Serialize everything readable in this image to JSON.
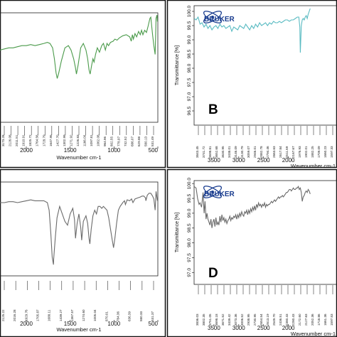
{
  "chart_data": [
    {
      "type": "line",
      "label": "",
      "color": "#4a9a4a",
      "xlabel": "Wavenumber cm-1",
      "ylabel": "",
      "xlim": [
        2300,
        500
      ],
      "ylim": [
        0,
        100
      ],
      "xticks": [
        2000,
        1500,
        1000,
        500
      ],
      "yticks": [],
      "peak_labels": [
        "3173.28",
        "2126.08",
        "2011.51",
        "1910.91",
        "1825.72",
        "1764.56",
        "1728.79",
        "1647.95",
        "1427.70",
        "1302.99",
        "1271.92",
        "1226.83",
        "1166.00",
        "1097.81",
        "1062.08",
        "964.96",
        "802.55",
        "778.97",
        "742.52",
        "686.07",
        "629.88",
        "580.13",
        "531.49"
      ],
      "x": [
        2300,
        2250,
        2200,
        2150,
        2100,
        2050,
        2000,
        1950,
        1900,
        1850,
        1800,
        1760,
        1730,
        1700,
        1680,
        1660,
        1647,
        1630,
        1600,
        1560,
        1520,
        1490,
        1460,
        1440,
        1428,
        1410,
        1380,
        1350,
        1320,
        1300,
        1285,
        1272,
        1255,
        1240,
        1227,
        1210,
        1190,
        1166,
        1140,
        1120,
        1098,
        1080,
        1062,
        1040,
        1010,
        990,
        965,
        940,
        900,
        860,
        820,
        803,
        790,
        779,
        760,
        742,
        720,
        700,
        686,
        670,
        650,
        630,
        610,
        590,
        580,
        560,
        545,
        531,
        520,
        510,
        505
      ],
      "values": [
        66,
        67,
        68,
        68,
        69,
        70,
        70,
        71,
        70,
        71,
        72,
        73,
        72,
        68,
        58,
        45,
        40,
        45,
        56,
        68,
        70,
        66,
        58,
        50,
        44,
        52,
        68,
        72,
        66,
        58,
        48,
        44,
        52,
        58,
        55,
        62,
        68,
        64,
        70,
        72,
        66,
        72,
        70,
        73,
        74,
        76,
        75,
        77,
        79,
        80,
        78,
        74,
        80,
        76,
        81,
        78,
        83,
        80,
        84,
        80,
        84,
        82,
        88,
        95,
        96,
        80,
        70,
        62,
        95,
        98,
        92
      ]
    },
    {
      "type": "line",
      "label": "B",
      "color": "#5abbc2",
      "logo": "BRUKER",
      "xlabel": "Wavenumber cm-1",
      "ylabel": "Transmittance [%]",
      "xlim": [
        3900,
        1020
      ],
      "ylim": [
        96.0,
        100.2
      ],
      "yticks": [
        "100.0",
        "99.5",
        "99.0",
        "98.5",
        "98.0",
        "97.5",
        "97.0",
        "96.5"
      ],
      "xticks": [
        3500,
        3000,
        2500,
        2000
      ],
      "peak_labels": [
        "3843.45",
        "3741.72",
        "3698.81",
        "3652.68",
        "3630.95",
        "3438.01",
        "3146.09",
        "3130.79",
        "3059.07",
        "2946.01",
        "2882.78",
        "2794.46",
        "2663.63",
        "2617.84",
        "2511.69",
        "2167.67",
        "1976.93",
        "1902.01",
        "1882.25",
        "1709.09",
        "1660.23",
        "1597.33"
      ],
      "x": [
        3900,
        3860,
        3820,
        3780,
        3740,
        3700,
        3660,
        3620,
        3580,
        3540,
        3500,
        3460,
        3420,
        3380,
        3340,
        3300,
        3260,
        3220,
        3180,
        3140,
        3100,
        3060,
        3020,
        2980,
        2940,
        2900,
        2860,
        2820,
        2780,
        2740,
        2700,
        2660,
        2620,
        2580,
        2540,
        2500,
        2460,
        2420,
        2380,
        2340,
        2300,
        2260,
        2220,
        2180,
        2140,
        2100,
        2060,
        2020,
        1980,
        1940,
        1900,
        1860,
        1820,
        1790,
        1770,
        1760,
        1740,
        1720,
        1700,
        1680,
        1660,
        1640,
        1620,
        1600,
        1580,
        1560
      ],
      "values": [
        99.75,
        99.7,
        99.8,
        99.55,
        99.6,
        99.45,
        99.55,
        99.4,
        99.5,
        99.35,
        99.45,
        99.5,
        99.4,
        99.55,
        99.45,
        99.5,
        99.4,
        99.45,
        99.5,
        99.3,
        99.45,
        99.4,
        99.35,
        99.5,
        99.45,
        99.4,
        99.55,
        99.45,
        99.35,
        99.5,
        99.4,
        99.55,
        99.45,
        99.6,
        99.5,
        99.55,
        99.6,
        99.5,
        99.6,
        99.55,
        99.65,
        99.6,
        99.6,
        99.65,
        99.6,
        99.65,
        99.7,
        99.7,
        99.65,
        99.7,
        99.7,
        99.75,
        99.8,
        99.8,
        99.45,
        98.55,
        99.5,
        99.7,
        99.75,
        99.7,
        99.8,
        99.85,
        99.75,
        99.9,
        100.0,
        100.1
      ]
    },
    {
      "type": "line",
      "label": "",
      "color": "#6a6a6a",
      "xlabel": "Wavenumber cm-1",
      "ylabel": "",
      "xlim": [
        2300,
        500
      ],
      "ylim": [
        0,
        100
      ],
      "xticks": [
        2000,
        1500,
        1000,
        500
      ],
      "yticks": [],
      "peak_labels": [
        "2125.22",
        "2016.28",
        "1929.76",
        "1705.87",
        "1688.11",
        "1439.27",
        "1367.57",
        "1274.60",
        "1005.04",
        "870.01",
        "784.36",
        "636.39",
        "580.33",
        "531.37"
      ],
      "x": [
        2300,
        2250,
        2200,
        2150,
        2100,
        2050,
        2000,
        1950,
        1900,
        1850,
        1800,
        1760,
        1740,
        1720,
        1705,
        1690,
        1688,
        1670,
        1650,
        1620,
        1590,
        1560,
        1530,
        1500,
        1470,
        1450,
        1439,
        1420,
        1400,
        1380,
        1368,
        1350,
        1320,
        1300,
        1285,
        1275,
        1260,
        1240,
        1220,
        1200,
        1180,
        1160,
        1140,
        1120,
        1100,
        1080,
        1060,
        1040,
        1020,
        1005,
        990,
        970,
        950,
        930,
        900,
        880,
        870,
        850,
        820,
        800,
        784,
        760,
        730,
        700,
        680,
        660,
        640,
        636,
        620,
        600,
        580,
        560,
        545,
        531,
        520,
        505
      ],
      "values": [
        78,
        78,
        79,
        79,
        78,
        79,
        80,
        81,
        80,
        80,
        80,
        78,
        70,
        45,
        20,
        12,
        18,
        40,
        62,
        74,
        66,
        58,
        54,
        66,
        72,
        60,
        40,
        56,
        66,
        52,
        38,
        58,
        64,
        56,
        40,
        34,
        50,
        64,
        70,
        66,
        74,
        74,
        72,
        74,
        72,
        70,
        62,
        50,
        38,
        30,
        40,
        56,
        70,
        74,
        78,
        80,
        76,
        81,
        80,
        82,
        78,
        82,
        83,
        84,
        85,
        85,
        83,
        80,
        86,
        88,
        88,
        85,
        82,
        70,
        90,
        80
      ]
    },
    {
      "type": "line",
      "label": "D",
      "color": "#6a6a6a",
      "logo": "BRUKER",
      "xlabel": "Wavenumber cm-1",
      "ylabel": "Transmittance [%]",
      "xlim": [
        3900,
        1020
      ],
      "ylim": [
        96.6,
        100.1
      ],
      "yticks": [
        "100.0",
        "99.5",
        "99.0",
        "98.5",
        "98.0",
        "97.5",
        "97.0"
      ],
      "xticks": [
        3500,
        3000,
        2500,
        2000
      ],
      "peak_labels": [
        "3836.03",
        "3802.35",
        "3751.05",
        "3698.18",
        "3671.52",
        "3439.42",
        "3073.36",
        "3006.52",
        "2938.95",
        "2730.95",
        "2654.54",
        "2613.19",
        "2549.70",
        "2436.51",
        "2380.43",
        "2280.43",
        "2172.60",
        "2127.63",
        "2052.36",
        "1718.86",
        "1661.36",
        "1597.53"
      ],
      "x": [
        3900,
        3860,
        3830,
        3800,
        3780,
        3750,
        3720,
        3698,
        3680,
        3660,
        3640,
        3620,
        3600,
        3580,
        3560,
        3540,
        3520,
        3500,
        3480,
        3460,
        3440,
        3420,
        3400,
        3380,
        3360,
        3340,
        3320,
        3300,
        3280,
        3260,
        3240,
        3220,
        3200,
        3180,
        3160,
        3140,
        3120,
        3100,
        3080,
        3060,
        3040,
        3020,
        3000,
        2980,
        2960,
        2940,
        2920,
        2900,
        2880,
        2860,
        2840,
        2820,
        2800,
        2780,
        2760,
        2740,
        2720,
        2700,
        2680,
        2660,
        2640,
        2620,
        2600,
        2580,
        2560,
        2540,
        2520,
        2500,
        2480,
        2460,
        2440,
        2420,
        2400,
        2380,
        2360,
        2340,
        2320,
        2300,
        2280,
        2260,
        2240,
        2220,
        2200,
        2180,
        2160,
        2140,
        2120,
        2100,
        2080,
        2060,
        2040,
        2020,
        2000,
        1980,
        1960,
        1940,
        1920,
        1900,
        1880,
        1860,
        1840,
        1820,
        1800,
        1780,
        1760,
        1740,
        1720,
        1700,
        1680,
        1660,
        1640,
        1620,
        1600,
        1580,
        1560
      ],
      "values": [
        99.9,
        99.85,
        99.5,
        99.3,
        99.35,
        99.2,
        99.7,
        99.0,
        99.4,
        98.8,
        99.0,
        98.8,
        98.7,
        98.6,
        98.8,
        98.5,
        98.7,
        98.8,
        98.55,
        98.85,
        98.6,
        98.7,
        98.6,
        98.9,
        98.7,
        98.95,
        98.75,
        98.85,
        98.7,
        98.8,
        98.65,
        98.75,
        98.8,
        98.9,
        98.75,
        98.85,
        98.8,
        98.9,
        98.85,
        98.95,
        98.8,
        98.95,
        98.85,
        99.0,
        98.9,
        99.05,
        98.95,
        98.9,
        99.05,
        99.0,
        99.1,
        98.95,
        99.1,
        99.0,
        99.15,
        99.05,
        99.2,
        99.1,
        99.25,
        99.1,
        99.3,
        99.2,
        99.35,
        99.25,
        99.3,
        99.2,
        99.3,
        99.25,
        99.35,
        99.2,
        99.3,
        99.25,
        99.3,
        99.3,
        99.35,
        99.4,
        99.35,
        99.4,
        99.45,
        99.4,
        99.45,
        99.5,
        99.55,
        99.5,
        99.55,
        99.55,
        99.6,
        99.55,
        99.6,
        99.65,
        99.7,
        99.7,
        99.75,
        99.8,
        99.8,
        99.75,
        99.8,
        99.85,
        99.8,
        99.8,
        99.85,
        99.85,
        99.9,
        99.8,
        99.85,
        99.7,
        99.4,
        99.55,
        99.6,
        99.7,
        99.75,
        99.7,
        99.8,
        99.75,
        99.65
      ]
    }
  ]
}
